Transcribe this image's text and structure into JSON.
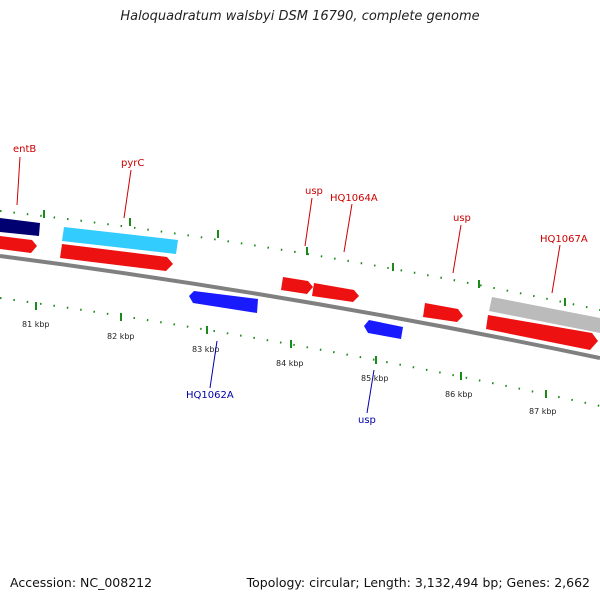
{
  "title": "Haloquadratum walsbyi DSM 16790, complete genome",
  "footer": {
    "accession": "Accession: NC_008212",
    "summary": "Topology: circular; Length: 3,132,494 bp; Genes: 2,662"
  },
  "colors": {
    "backbone": "#808080",
    "forward_cds": "#ff1a1a",
    "reverse_cds": "#1a1aff",
    "top_label": "#cc0000",
    "bottom_label": "#0000aa",
    "tick": "#1a8a1a",
    "dark_blue": "#000070",
    "light_blue": "#33ccff",
    "gray": "#bbbbbb"
  },
  "kbp_labels": [
    "81 kbp",
    "82 kbp",
    "83 kbp",
    "84 kbp",
    "85 kbp",
    "86 kbp",
    "87 kbp"
  ],
  "top_labels": [
    {
      "text": "entB",
      "anchor": 0.6
    },
    {
      "text": "pyrC",
      "anchor": 1.4
    },
    {
      "text": "usp",
      "anchor": 3.7
    },
    {
      "text": "HQ1064A",
      "anchor": 4.1
    },
    {
      "text": "usp",
      "anchor": 5.4
    },
    {
      "text": "HQ1067A",
      "anchor": 6.5
    }
  ],
  "bottom_labels": [
    {
      "text": "HQ1062A",
      "anchor": 2.5
    },
    {
      "text": "usp",
      "anchor": 4.5
    }
  ]
}
